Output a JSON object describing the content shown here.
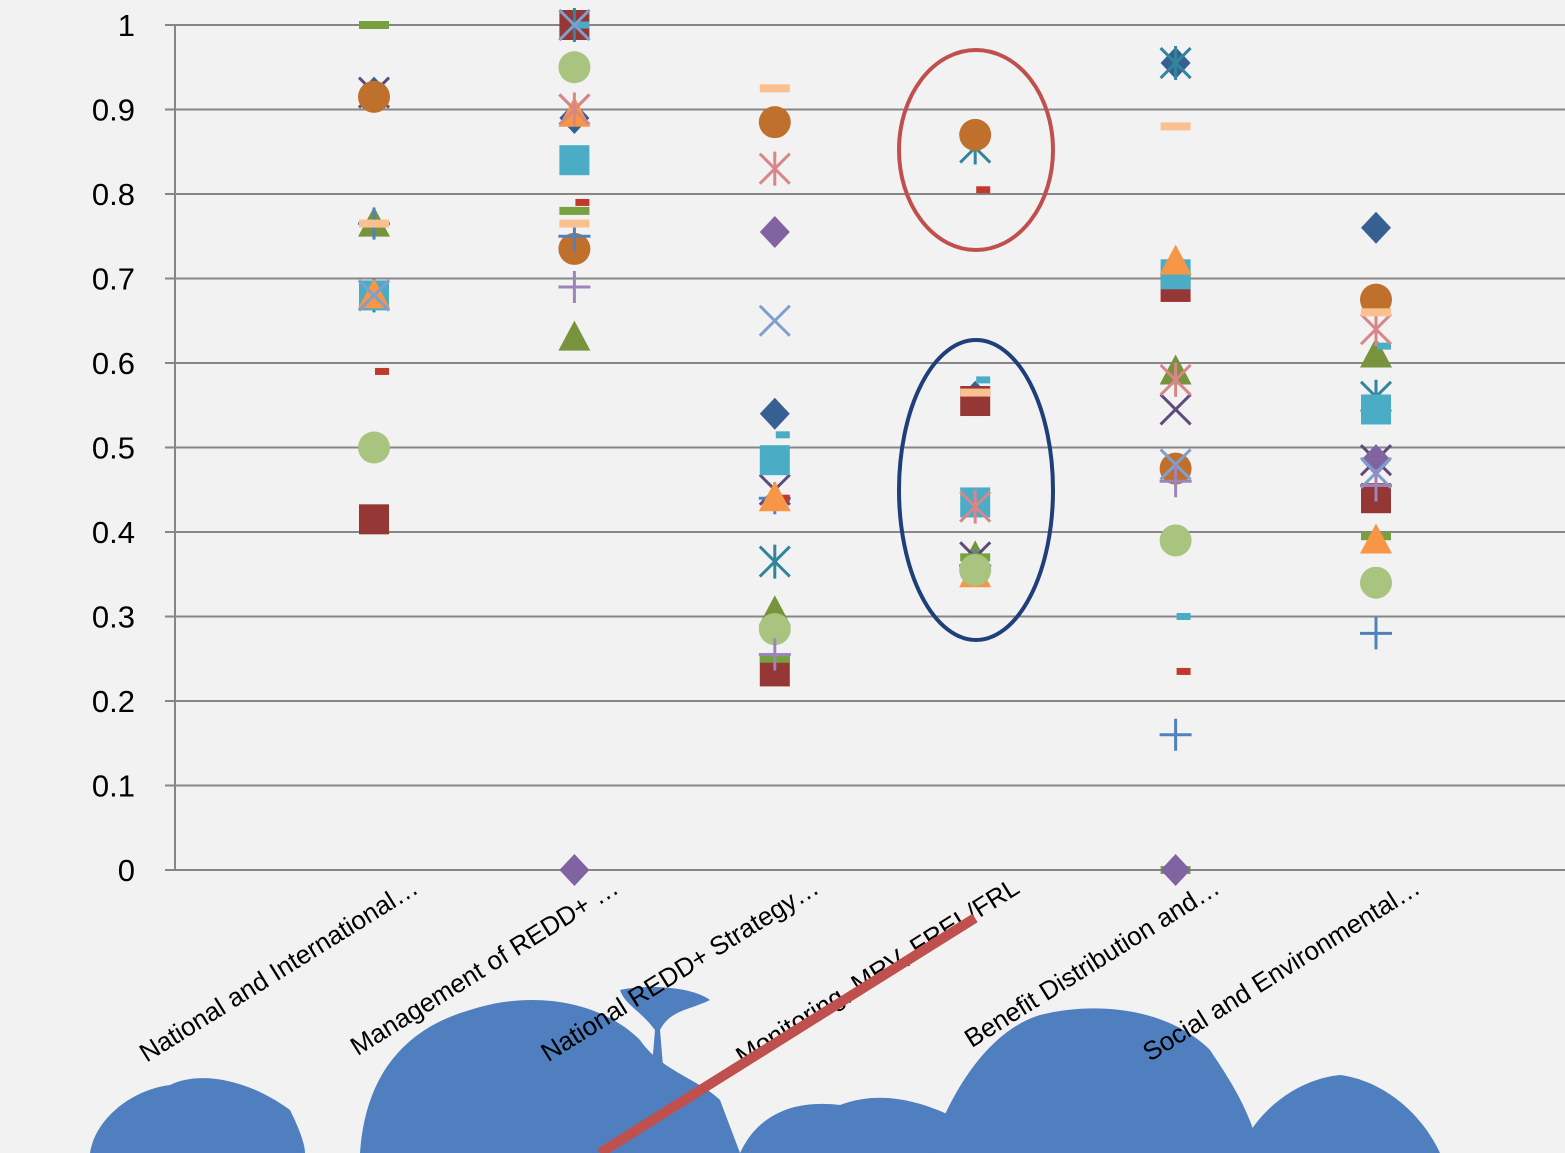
{
  "chart_data": {
    "type": "scatter",
    "categories": [
      "National and International…",
      "Management of REDD+ …",
      "National REDD+ Strategy…",
      "Monitoring, MRV, FREL/FRL",
      "Benefit Distribution and…",
      "Social and Environmental…"
    ],
    "ylim": [
      0,
      1
    ],
    "yticks": [
      0,
      0.1,
      0.2,
      0.3,
      0.4,
      0.5,
      0.6,
      0.7,
      0.8,
      0.9,
      1
    ],
    "grid": true,
    "series": [
      {
        "marker": "diamond",
        "color": "#376092",
        "values": [
          0.92,
          0.89,
          0.54,
          0.56,
          0.955,
          0.76
        ]
      },
      {
        "marker": "square",
        "color": "#953735",
        "values": [
          0.415,
          1.0,
          0.235,
          0.555,
          0.69,
          0.44
        ]
      },
      {
        "marker": "triangle",
        "color": "#77933c",
        "values": [
          0.765,
          0.63,
          0.305,
          0.37,
          0.59,
          0.61
        ]
      },
      {
        "marker": "x",
        "color": "#604a7b",
        "values": [
          0.92,
          0.9,
          0.45,
          0.37,
          0.545,
          0.485
        ]
      },
      {
        "marker": "star",
        "color": "#31859c",
        "values": [
          0.68,
          1.0,
          0.365,
          0.855,
          0.955,
          0.56
        ]
      },
      {
        "marker": "circle",
        "color": "#c0702d",
        "values": [
          0.915,
          0.735,
          0.885,
          0.87,
          0.475,
          0.675
        ]
      },
      {
        "marker": "plus",
        "color": "#4f81bd",
        "values": [
          0.765,
          0.75,
          0.44,
          0.36,
          0.16,
          0.28
        ]
      },
      {
        "marker": "dash",
        "color": "#77a040",
        "values": [
          1.0,
          0.78,
          0.25,
          0.37,
          0.0,
          0.395
        ]
      },
      {
        "marker": "smalldash",
        "color": "#4bacc6",
        "values": [
          0.5,
          1.0,
          0.515,
          0.58,
          0.3,
          0.62
        ]
      },
      {
        "marker": "smalldash",
        "color": "#c0392b",
        "values": [
          0.59,
          0.79,
          0.44,
          0.805,
          0.235,
          null
        ]
      },
      {
        "marker": "diamond",
        "color": "#8064a2",
        "values": [
          null,
          0.0,
          0.755,
          null,
          0.0,
          0.485
        ]
      },
      {
        "marker": "square",
        "color": "#4bacc6",
        "values": [
          0.68,
          0.84,
          0.485,
          0.435,
          0.705,
          0.545
        ]
      },
      {
        "marker": "triangle",
        "color": "#f79646",
        "values": [
          0.68,
          0.895,
          0.44,
          0.35,
          0.72,
          0.39
        ]
      },
      {
        "marker": "x",
        "color": "#7f9fcf",
        "values": [
          0.68,
          1.0,
          0.65,
          null,
          0.48,
          0.47
        ]
      },
      {
        "marker": "star",
        "color": "#d9868a",
        "values": [
          null,
          0.9,
          0.83,
          0.43,
          0.58,
          0.64
        ]
      },
      {
        "marker": "circle",
        "color": "#a9c47f",
        "values": [
          0.5,
          0.95,
          0.285,
          0.355,
          0.39,
          0.34
        ]
      },
      {
        "marker": "plus",
        "color": "#9b85bb",
        "values": [
          null,
          0.69,
          0.255,
          null,
          0.46,
          0.455
        ]
      },
      {
        "marker": "dash",
        "color": "#fac090",
        "values": [
          0.765,
          0.765,
          0.925,
          0.565,
          0.88,
          0.66
        ]
      }
    ]
  }
}
